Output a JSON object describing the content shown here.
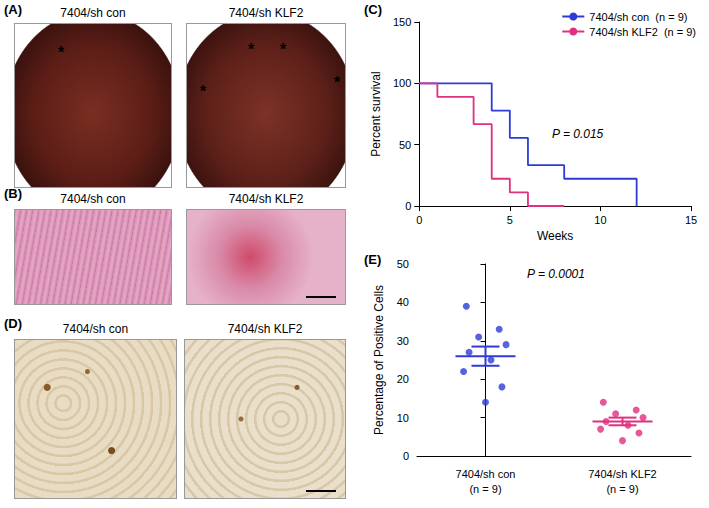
{
  "figure": {
    "A": {
      "label": "(A)",
      "images": [
        {
          "caption": "7404/sh con",
          "marks": [
            "*"
          ]
        },
        {
          "caption": "7404/sh KLF2",
          "marks": [
            "*",
            "*",
            "*",
            "*"
          ]
        }
      ]
    },
    "B": {
      "label": "(B)",
      "images": [
        {
          "caption": "7404/sh con"
        },
        {
          "caption": "7404/sh KLF2"
        }
      ]
    },
    "C": {
      "label": "(C)"
    },
    "D": {
      "label": "(D)",
      "images": [
        {
          "caption": "7404/sh con"
        },
        {
          "caption": "7404/sh KLF2"
        }
      ]
    },
    "E": {
      "label": "(E)"
    }
  },
  "chart_data": [
    {
      "type": "line",
      "x_label": "Weeks",
      "y_label": "Percent survival",
      "x": [
        0,
        1,
        3,
        4,
        5,
        6,
        8,
        12
      ],
      "series": [
        {
          "name": "7404/sh con  (n = 9)",
          "color": "#2e3bd6",
          "values": [
            100,
            100,
            100,
            77.8,
            55.6,
            33.3,
            22.2,
            0
          ]
        },
        {
          "name": "7404/sh KLF2  (n = 9)",
          "color": "#e0307f",
          "values": [
            100,
            88.9,
            66.7,
            22.2,
            11.1,
            0,
            null,
            null
          ]
        }
      ],
      "line_style": "step",
      "annotations": [
        "P = 0.015"
      ],
      "xlim": [
        0,
        15
      ],
      "xticks": [
        0,
        5,
        10,
        15
      ],
      "ylim": [
        0,
        150
      ],
      "yticks": [
        0,
        50,
        100,
        150
      ],
      "legend": "upper right",
      "grid": false
    },
    {
      "type": "scatter",
      "y_label": "Percentage of Positive Cells",
      "categories": [
        "7404/sh con\n(n = 9)",
        "7404/sh KLF2\n(n = 9)"
      ],
      "values": [
        [
          39,
          33,
          31,
          29,
          27,
          25,
          22,
          18,
          14
        ],
        [
          14,
          12,
          11,
          10,
          9,
          8,
          7,
          6,
          4
        ]
      ],
      "mean": [
        26,
        9
      ],
      "sem": [
        2.5,
        1.0
      ],
      "colors": [
        "#2e3bd6",
        "#e0307f"
      ],
      "annotations": [
        "P = 0.0001"
      ],
      "ylim": [
        0,
        50
      ],
      "yticks": [
        0,
        10,
        20,
        30,
        40,
        50
      ],
      "grid": false
    }
  ]
}
